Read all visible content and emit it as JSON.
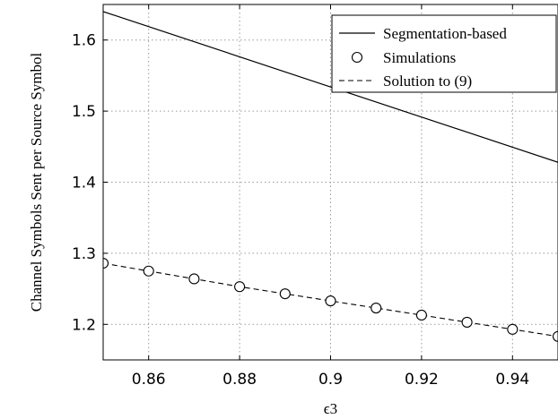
{
  "chart_data": {
    "type": "line",
    "xlabel": "ϵ3",
    "ylabel": "Channel Symbols Sent per Source Symbol",
    "xlim": [
      0.85,
      0.95
    ],
    "ylim": [
      1.15,
      1.65
    ],
    "xticks": [
      0.86,
      0.88,
      0.9,
      0.92,
      0.94
    ],
    "xtick_labels": [
      "0.86",
      "0.88",
      "0.9",
      "0.92",
      "0.94"
    ],
    "yticks": [
      1.2,
      1.3,
      1.4,
      1.5,
      1.6
    ],
    "ytick_labels": [
      "1.2",
      "1.3",
      "1.4",
      "1.5",
      "1.6"
    ],
    "grid": true,
    "legend_position": "top-right",
    "series": [
      {
        "name": "Segmentation-based",
        "style": "solid",
        "x": [
          0.85,
          0.95
        ],
        "y": [
          1.64,
          1.428
        ]
      },
      {
        "name": "Simulations",
        "style": "circle-markers",
        "x": [
          0.85,
          0.86,
          0.87,
          0.88,
          0.89,
          0.9,
          0.91,
          0.92,
          0.93,
          0.94,
          0.95
        ],
        "y": [
          1.286,
          1.275,
          1.264,
          1.253,
          1.243,
          1.233,
          1.223,
          1.213,
          1.203,
          1.193,
          1.183
        ]
      },
      {
        "name": "Solution to (9)",
        "style": "dashed",
        "x": [
          0.85,
          0.86,
          0.87,
          0.88,
          0.89,
          0.9,
          0.91,
          0.92,
          0.93,
          0.94,
          0.95
        ],
        "y": [
          1.286,
          1.275,
          1.264,
          1.253,
          1.243,
          1.233,
          1.223,
          1.213,
          1.203,
          1.193,
          1.183
        ]
      }
    ]
  }
}
